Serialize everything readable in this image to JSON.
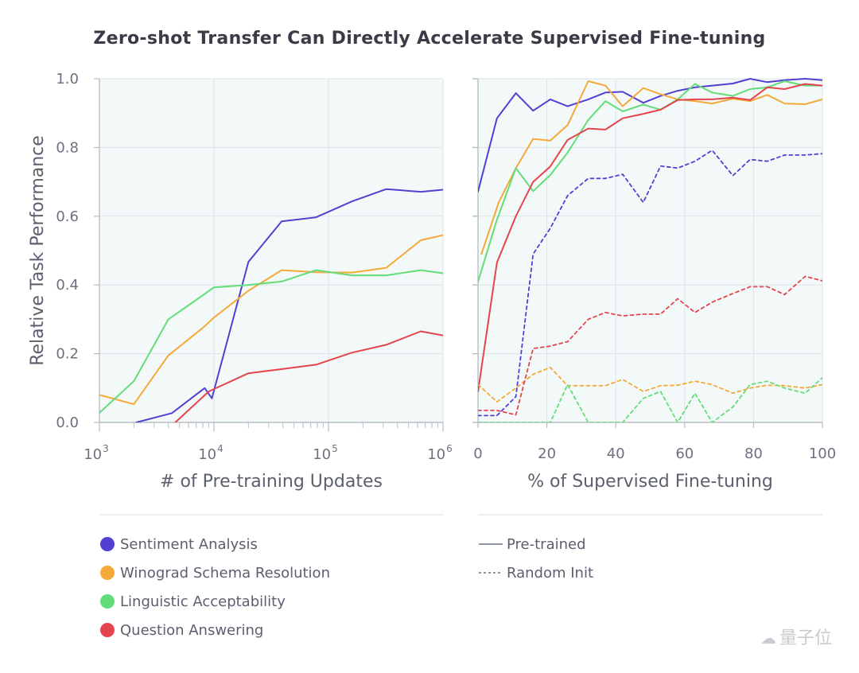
{
  "title": "Zero-shot Transfer Can Directly Accelerate Supervised Fine-tuning",
  "colors": {
    "sentiment": "#5140d1",
    "winograd": "#f4a93a",
    "linguistic": "#62dd77",
    "qa": "#e5444c",
    "plot_bg": "#f3f9f9",
    "grid": "#dde4e8",
    "axis": "#b8bec4",
    "line_style_gray": "#8d95a6"
  },
  "shared_y_label": "Relative Task Performance",
  "legend": {
    "tasks": [
      {
        "key": "sentiment",
        "label": "Sentiment Analysis"
      },
      {
        "key": "winograd",
        "label": "Winograd Schema Resolution"
      },
      {
        "key": "linguistic",
        "label": "Linguistic Acceptability"
      },
      {
        "key": "qa",
        "label": "Question Answering"
      }
    ],
    "styles": [
      {
        "key": "solid",
        "label": "Pre-trained"
      },
      {
        "key": "dashed",
        "label": "Random Init"
      }
    ]
  },
  "watermark": "量子位",
  "chart_data": [
    {
      "type": "line",
      "xscale": "log",
      "xlabel": "# of Pre-training Updates",
      "ylabel": "Relative Task Performance",
      "xlim": [
        1000,
        1000000
      ],
      "ylim": [
        0,
        1.0
      ],
      "x_tick_labels": [
        {
          "value": 1000,
          "base": "10",
          "exp": "3"
        },
        {
          "value": 10000,
          "base": "10",
          "exp": "4"
        },
        {
          "value": 100000,
          "base": "10",
          "exp": "5"
        },
        {
          "value": 1000000,
          "base": "10",
          "exp": "6"
        }
      ],
      "y_tick_labels": [
        "0.0",
        "0.2",
        "0.4",
        "0.6",
        "0.8",
        "1.0"
      ],
      "y_ticks": [
        0,
        0.2,
        0.4,
        0.6,
        0.8,
        1.0
      ],
      "series": [
        {
          "name": "Sentiment Analysis",
          "color_key": "sentiment",
          "style": "solid",
          "x": [
            2100,
            4300,
            8300,
            9600,
            20000,
            39000,
            78000,
            160000,
            320000,
            640000,
            1000000
          ],
          "y": [
            0.0,
            0.027,
            0.1,
            0.07,
            0.467,
            0.585,
            0.597,
            0.643,
            0.679,
            0.671,
            0.677
          ]
        },
        {
          "name": "Winograd Schema Resolution",
          "color_key": "winograd",
          "style": "solid",
          "x": [
            1000,
            2000,
            4000,
            8000,
            10000,
            20000,
            39000,
            78000,
            160000,
            320000,
            640000,
            1000000
          ],
          "y": [
            0.08,
            0.053,
            0.195,
            0.275,
            0.305,
            0.383,
            0.443,
            0.437,
            0.436,
            0.45,
            0.53,
            0.545
          ]
        },
        {
          "name": "Linguistic Acceptability",
          "color_key": "linguistic",
          "style": "solid",
          "x": [
            1000,
            2000,
            4000,
            8000,
            10000,
            20000,
            39000,
            78000,
            160000,
            320000,
            640000,
            1000000
          ],
          "y": [
            0.028,
            0.12,
            0.3,
            0.37,
            0.393,
            0.4,
            0.41,
            0.443,
            0.428,
            0.428,
            0.443,
            0.434
          ]
        },
        {
          "name": "Question Answering",
          "color_key": "qa",
          "style": "solid",
          "x": [
            4600,
            9000,
            20000,
            39000,
            78000,
            160000,
            320000,
            640000,
            1000000
          ],
          "y": [
            0.0,
            0.09,
            0.143,
            0.155,
            0.168,
            0.203,
            0.226,
            0.265,
            0.253
          ]
        }
      ]
    },
    {
      "type": "line",
      "xscale": "linear",
      "xlabel": "% of Supervised Fine-tuning",
      "ylabel": "",
      "xlim": [
        0,
        100
      ],
      "ylim": [
        0,
        1.0
      ],
      "x_ticks": [
        0,
        20,
        40,
        60,
        80,
        100
      ],
      "x_tick_labels": [
        "0",
        "20",
        "40",
        "60",
        "80",
        "100"
      ],
      "y_ticks": [
        0,
        0.2,
        0.4,
        0.6,
        0.8,
        1.0
      ],
      "series": [
        {
          "name": "Sentiment Analysis (Pre-trained)",
          "color_key": "sentiment",
          "style": "solid",
          "x": [
            0,
            5.5,
            11,
            16,
            21,
            26,
            32,
            37,
            42,
            48,
            53,
            58,
            63,
            68,
            74,
            79,
            84,
            89,
            95,
            100
          ],
          "y": [
            0.672,
            0.885,
            0.958,
            0.907,
            0.94,
            0.92,
            0.94,
            0.96,
            0.962,
            0.93,
            0.95,
            0.965,
            0.975,
            0.98,
            0.986,
            1.0,
            0.99,
            0.996,
            1.0,
            0.996
          ]
        },
        {
          "name": "Winograd Schema Resolution (Pre-trained)",
          "color_key": "winograd",
          "style": "solid",
          "x": [
            1,
            6,
            11,
            16,
            21,
            26,
            32,
            37,
            42,
            48,
            53,
            58,
            63,
            68,
            74,
            79,
            84,
            89,
            95,
            100
          ],
          "y": [
            0.49,
            0.64,
            0.74,
            0.825,
            0.82,
            0.865,
            0.993,
            0.98,
            0.92,
            0.973,
            0.955,
            0.94,
            0.935,
            0.928,
            0.942,
            0.935,
            0.953,
            0.928,
            0.926,
            0.94
          ]
        },
        {
          "name": "Linguistic Acceptability (Pre-trained)",
          "color_key": "linguistic",
          "style": "solid",
          "x": [
            0,
            5.5,
            11,
            16,
            21,
            26,
            32,
            37,
            42,
            48,
            53,
            58,
            63,
            68,
            74,
            79,
            84,
            89,
            95,
            100
          ],
          "y": [
            0.41,
            0.59,
            0.74,
            0.673,
            0.72,
            0.785,
            0.88,
            0.935,
            0.905,
            0.925,
            0.91,
            0.94,
            0.985,
            0.96,
            0.95,
            0.97,
            0.975,
            0.993,
            0.98,
            0.98
          ]
        },
        {
          "name": "Question Answering (Pre-trained)",
          "color_key": "qa",
          "style": "solid",
          "x": [
            0,
            5.5,
            11,
            16,
            21,
            26,
            32,
            37,
            42,
            48,
            53,
            58,
            63,
            68,
            74,
            79,
            84,
            89,
            95,
            100
          ],
          "y": [
            0.09,
            0.465,
            0.6,
            0.7,
            0.745,
            0.822,
            0.855,
            0.852,
            0.885,
            0.898,
            0.91,
            0.938,
            0.94,
            0.94,
            0.945,
            0.938,
            0.975,
            0.97,
            0.985,
            0.98
          ]
        },
        {
          "name": "Sentiment Analysis (Random Init)",
          "color_key": "sentiment",
          "style": "dashed",
          "x": [
            0,
            5.5,
            11,
            16,
            21,
            26,
            32,
            37,
            42,
            48,
            53,
            58,
            63,
            68,
            74,
            79,
            84,
            89,
            95,
            100
          ],
          "y": [
            0.02,
            0.02,
            0.075,
            0.49,
            0.565,
            0.66,
            0.71,
            0.71,
            0.722,
            0.64,
            0.746,
            0.74,
            0.76,
            0.792,
            0.718,
            0.765,
            0.76,
            0.778,
            0.778,
            0.782
          ]
        },
        {
          "name": "Winograd Schema Resolution (Random Init)",
          "color_key": "winograd",
          "style": "dashed",
          "x": [
            0,
            5.5,
            11,
            16,
            21,
            26,
            32,
            37,
            42,
            48,
            53,
            58,
            63,
            68,
            74,
            79,
            84,
            89,
            95,
            100
          ],
          "y": [
            0.11,
            0.06,
            0.1,
            0.14,
            0.16,
            0.107,
            0.107,
            0.107,
            0.125,
            0.09,
            0.107,
            0.108,
            0.12,
            0.11,
            0.085,
            0.1,
            0.108,
            0.107,
            0.1,
            0.11
          ]
        },
        {
          "name": "Linguistic Acceptability (Random Init)",
          "color_key": "linguistic",
          "style": "dashed",
          "x": [
            0,
            5.5,
            11,
            16,
            21,
            26,
            32,
            37,
            42,
            48,
            53,
            58,
            63,
            68,
            74,
            79,
            84,
            89,
            95,
            100
          ],
          "y": [
            0.0,
            0.0,
            0.0,
            0.0,
            0.0,
            0.11,
            0.0,
            0.0,
            0.0,
            0.07,
            0.09,
            0.0,
            0.085,
            0.0,
            0.045,
            0.11,
            0.12,
            0.1,
            0.085,
            0.13
          ]
        },
        {
          "name": "Question Answering (Random Init)",
          "color_key": "qa",
          "style": "dashed",
          "x": [
            0,
            5.5,
            11,
            16,
            21,
            26,
            32,
            37,
            42,
            48,
            53,
            58,
            63,
            68,
            74,
            79,
            84,
            89,
            95,
            100
          ],
          "y": [
            0.035,
            0.035,
            0.022,
            0.215,
            0.222,
            0.235,
            0.3,
            0.32,
            0.31,
            0.315,
            0.315,
            0.36,
            0.32,
            0.35,
            0.375,
            0.395,
            0.395,
            0.372,
            0.425,
            0.412
          ]
        }
      ]
    }
  ]
}
